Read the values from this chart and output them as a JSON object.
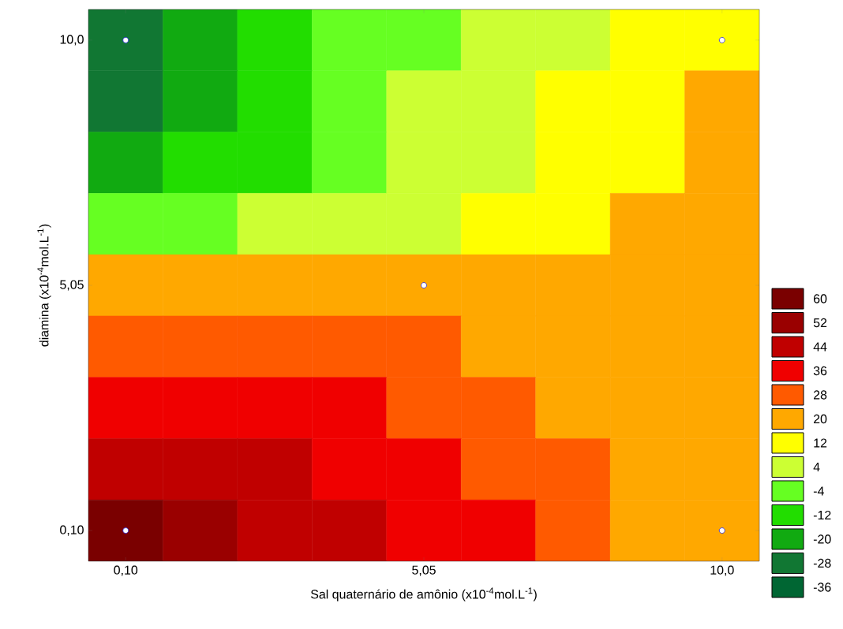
{
  "chart_data": {
    "type": "heatmap",
    "xlabel": "Sal quaternário de amônio (x10$^{-4}$mol.L$^{-1}$)",
    "ylabel": "diamina (x10$^{-4}$mol.L$^{-1}$)",
    "categories": [
      "0,10",
      null,
      null,
      null,
      "5,05",
      null,
      null,
      null,
      "10,0"
    ],
    "y_categories": [
      "10,0",
      null,
      null,
      null,
      "5,05",
      null,
      null,
      null,
      "0,10"
    ],
    "cells": [
      [
        -28,
        -20,
        -12,
        -4,
        -4,
        4,
        4,
        12,
        12
      ],
      [
        -28,
        -20,
        -12,
        -4,
        4,
        4,
        12,
        12,
        20
      ],
      [
        -20,
        -12,
        -12,
        -4,
        4,
        4,
        12,
        12,
        20
      ],
      [
        -4,
        -4,
        4,
        4,
        4,
        12,
        12,
        20,
        20
      ],
      [
        20,
        20,
        20,
        20,
        20,
        20,
        20,
        20,
        20
      ],
      [
        28,
        28,
        28,
        28,
        28,
        20,
        20,
        20,
        20
      ],
      [
        36,
        36,
        36,
        36,
        28,
        28,
        20,
        20,
        20
      ],
      [
        44,
        44,
        44,
        36,
        36,
        28,
        28,
        20,
        20
      ],
      [
        60,
        52,
        44,
        44,
        36,
        36,
        28,
        20,
        20
      ]
    ],
    "cticks": [
      60,
      52,
      44,
      36,
      28,
      20,
      12,
      4,
      -4,
      -12,
      -20,
      -28,
      -36
    ],
    "colors": [
      "#7a0000",
      "#9a0000",
      "#c00000",
      "#f00000",
      "#ff5a00",
      "#ffa800",
      "#ffff00",
      "#ccff33",
      "#66ff22",
      "#22dd00",
      "#11aa11",
      "#117733",
      "#006633"
    ]
  }
}
